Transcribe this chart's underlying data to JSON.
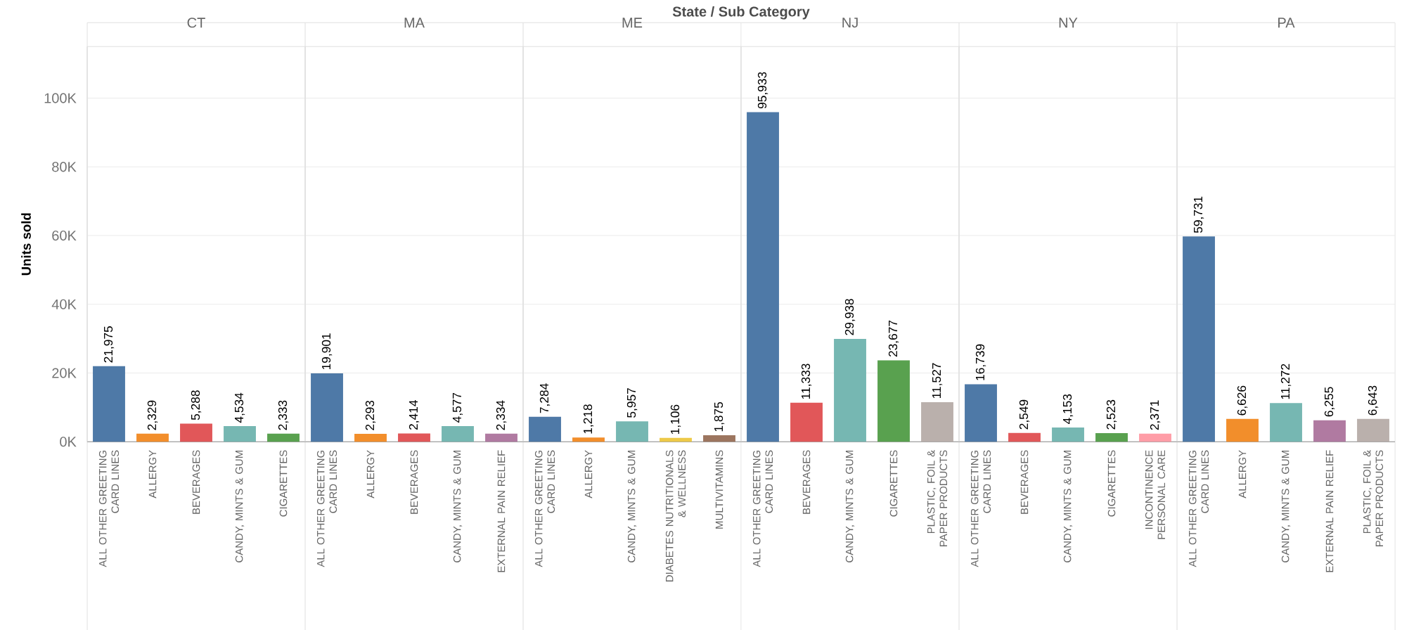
{
  "chart_data": [
    {
      "type": "bar",
      "title": "CT",
      "ylabel": "Units sold",
      "annotations": [
        "State / Sub Category"
      ],
      "categories": [
        "ALL OTHER GREETING CARD LINES",
        "ALLERGY",
        "BEVERAGES",
        "CANDY, MINTS & GUM",
        "CIGARETTES"
      ],
      "values": [
        21975,
        2329,
        5288,
        4534,
        2333
      ],
      "value_labels": [
        "21,975",
        "2,329",
        "5,288",
        "4,534",
        "2,333"
      ],
      "colors": [
        "#4e79a7",
        "#f28e2b",
        "#e15759",
        "#76b7b2",
        "#59a14f"
      ],
      "ylim": [
        0,
        115000
      ],
      "yticks": [
        {
          "value": 0,
          "label": "0K"
        },
        {
          "value": 20000,
          "label": "20K"
        },
        {
          "value": 40000,
          "label": "40K"
        },
        {
          "value": 60000,
          "label": "60K"
        },
        {
          "value": 80000,
          "label": "80K"
        },
        {
          "value": 100000,
          "label": "100K"
        }
      ],
      "grid": "y"
    },
    {
      "type": "bar",
      "title": "MA",
      "categories": [
        "ALL OTHER GREETING CARD LINES",
        "ALLERGY",
        "BEVERAGES",
        "CANDY, MINTS & GUM",
        "EXTERNAL PAIN RELIEF"
      ],
      "values": [
        19901,
        2293,
        2414,
        4577,
        2334
      ],
      "value_labels": [
        "19,901",
        "2,293",
        "2,414",
        "4,577",
        "2,334"
      ],
      "colors": [
        "#4e79a7",
        "#f28e2b",
        "#e15759",
        "#76b7b2",
        "#b07aa1"
      ],
      "ylim": [
        0,
        115000
      ],
      "yticks": [
        {
          "value": 0,
          "label": null
        },
        {
          "value": 20000,
          "label": null
        },
        {
          "value": 40000,
          "label": null
        },
        {
          "value": 60000,
          "label": null
        },
        {
          "value": 80000,
          "label": null
        },
        {
          "value": 100000,
          "label": null
        }
      ],
      "grid": "y",
      "tick_labels": "x"
    },
    {
      "type": "bar",
      "title": "ME",
      "categories": [
        "ALL OTHER GREETING CARD LINES",
        "ALLERGY",
        "CANDY, MINTS & GUM",
        "DIABETES NUTRITIONALS & WELLNESS",
        "MULTIVITAMINS"
      ],
      "values": [
        7284,
        1218,
        5957,
        1106,
        1875
      ],
      "value_labels": [
        "7,284",
        "1,218",
        "5,957",
        "1,106",
        "1,875"
      ],
      "colors": [
        "#4e79a7",
        "#f28e2b",
        "#76b7b2",
        "#edc948",
        "#9c755f"
      ],
      "ylim": [
        0,
        115000
      ],
      "yticks": [
        {
          "value": 0,
          "label": null
        },
        {
          "value": 20000,
          "label": null
        },
        {
          "value": 40000,
          "label": null
        },
        {
          "value": 60000,
          "label": null
        },
        {
          "value": 80000,
          "label": null
        },
        {
          "value": 100000,
          "label": null
        }
      ],
      "grid": "y",
      "tick_labels": "x"
    },
    {
      "type": "bar",
      "title": "NJ",
      "categories": [
        "ALL OTHER GREETING CARD LINES",
        "BEVERAGES",
        "CANDY, MINTS & GUM",
        "CIGARETTES",
        "PLASTIC, FOIL & PAPER PRODUCTS"
      ],
      "values": [
        95933,
        11333,
        29938,
        23677,
        11527
      ],
      "value_labels": [
        "95,933",
        "11,333",
        "29,938",
        "23,677",
        "11,527"
      ],
      "colors": [
        "#4e79a7",
        "#e15759",
        "#76b7b2",
        "#59a14f",
        "#bab0ac"
      ],
      "ylim": [
        0,
        115000
      ],
      "yticks": [
        {
          "value": 0,
          "label": null
        },
        {
          "value": 20000,
          "label": null
        },
        {
          "value": 40000,
          "label": null
        },
        {
          "value": 60000,
          "label": null
        },
        {
          "value": 80000,
          "label": null
        },
        {
          "value": 100000,
          "label": null
        }
      ],
      "grid": "y",
      "tick_labels": "x"
    },
    {
      "type": "bar",
      "title": "NY",
      "categories": [
        "ALL OTHER GREETING CARD LINES",
        "BEVERAGES",
        "CANDY, MINTS & GUM",
        "CIGARETTES",
        "INCONTINENCE PERSONAL CARE"
      ],
      "values": [
        16739,
        2549,
        4153,
        2523,
        2371
      ],
      "value_labels": [
        "16,739",
        "2,549",
        "4,153",
        "2,523",
        "2,371"
      ],
      "colors": [
        "#4e79a7",
        "#e15759",
        "#76b7b2",
        "#59a14f",
        "#ff9da7"
      ],
      "ylim": [
        0,
        115000
      ],
      "yticks": [
        {
          "value": 0,
          "label": null
        },
        {
          "value": 20000,
          "label": null
        },
        {
          "value": 40000,
          "label": null
        },
        {
          "value": 60000,
          "label": null
        },
        {
          "value": 80000,
          "label": null
        },
        {
          "value": 100000,
          "label": null
        }
      ],
      "grid": "y",
      "tick_labels": "x"
    },
    {
      "type": "bar",
      "title": "PA",
      "categories": [
        "ALL OTHER GREETING CARD LINES",
        "ALLERGY",
        "CANDY, MINTS & GUM",
        "EXTERNAL PAIN RELIEF",
        "PLASTIC, FOIL & PAPER PRODUCTS"
      ],
      "values": [
        59731,
        6626,
        11272,
        6255,
        6643
      ],
      "value_labels": [
        "59,731",
        "6,626",
        "11,272",
        "6,255",
        "6,643"
      ],
      "colors": [
        "#4e79a7",
        "#f28e2b",
        "#76b7b2",
        "#b07aa1",
        "#bab0ac"
      ],
      "ylim": [
        0,
        115000
      ],
      "yticks": [
        {
          "value": 0,
          "label": null
        },
        {
          "value": 20000,
          "label": null
        },
        {
          "value": 40000,
          "label": null
        },
        {
          "value": 60000,
          "label": null
        },
        {
          "value": 80000,
          "label": null
        },
        {
          "value": 100000,
          "label": null
        }
      ],
      "grid": "y",
      "tick_labels": "x"
    }
  ]
}
